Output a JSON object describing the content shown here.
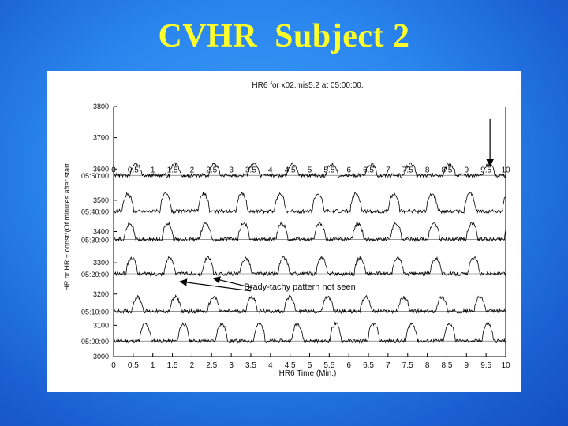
{
  "slide": {
    "title": "CVHR  Subject 2"
  },
  "chart_data": {
    "type": "line",
    "title": "HR6 for x02.mis5.2 at 05:00:00.",
    "xlabel": "HR6 Time (Min.)",
    "ylabel": "HR or HR + const*(Of minutes after start",
    "xlim": [
      0,
      10
    ],
    "ylim": [
      3000,
      3800
    ],
    "x_ticks": [
      "0",
      "0.5",
      "1",
      "1.5",
      "2",
      "2.5",
      "3",
      "3.5",
      "4",
      "4.5",
      "5",
      "5.5",
      "6",
      "6.5",
      "7",
      "7.5",
      "8",
      "8.5",
      "9",
      "9.5",
      "10"
    ],
    "y_ticks": [
      3000,
      3100,
      3200,
      3300,
      3400,
      3500,
      3600,
      3700,
      3800
    ],
    "row_labels": [
      "05:00:00",
      "05:10:00",
      "05:20:00",
      "05:30:00",
      "05:40:00",
      "05:50:00"
    ],
    "series": [
      {
        "offset": 3050,
        "cycle_min": 0.97,
        "phase": 0.55,
        "amp": 55
      },
      {
        "offset": 3145,
        "cycle_min": 0.97,
        "phase": 0.35,
        "amp": 45
      },
      {
        "offset": 3265,
        "cycle_min": 0.97,
        "phase": 0.2,
        "amp": 50
      },
      {
        "offset": 3375,
        "cycle_min": 0.97,
        "phase": 0.15,
        "amp": 50
      },
      {
        "offset": 3465,
        "cycle_min": 0.97,
        "phase": 0.1,
        "amp": 55
      },
      {
        "offset": 3580,
        "cycle_min": 1.0,
        "phase": 0.3,
        "amp": 35
      }
    ],
    "annotation": {
      "text": "Brady-tachy pattern not seen"
    },
    "colors": {
      "line": "#000000",
      "background": "#ffffff"
    }
  }
}
